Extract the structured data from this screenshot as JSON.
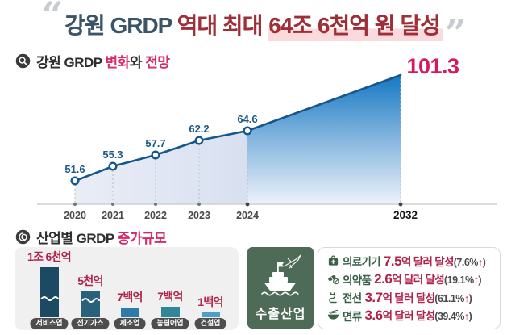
{
  "title": {
    "open_quote": "“",
    "close_quote": "”",
    "seg1": "강원 GRDP ",
    "seg2": "역대 최대 ",
    "seg3": "64조 6천억 원 달성"
  },
  "section1": {
    "t1": "강원 GRDP ",
    "t2": "변화",
    "t3": "와 ",
    "t4": "전망"
  },
  "section2": {
    "t1": "산업별 GRDP ",
    "t2": "증가규모"
  },
  "chart_data": [
    {
      "type": "area-line",
      "title": "강원 GRDP 변화와 전망",
      "categories": [
        "2020",
        "2021",
        "2022",
        "2023",
        "2024",
        "2032"
      ],
      "values": [
        51.6,
        55.3,
        57.7,
        62.2,
        64.6,
        101.3
      ],
      "value_labels": [
        "51.6",
        "55.3",
        "57.7",
        "62.2",
        "64.6",
        "101.3"
      ],
      "unit": "조 원",
      "forecast_start_category": "2024",
      "emphasized_index": 5,
      "gridlines": false,
      "xaxis_line": true,
      "line_color": "#15568c",
      "value_label_color": "#1c5884",
      "final_value_color": "#d6185f",
      "area_left_colors": [
        "#e9edf6",
        "#d8e0f0"
      ],
      "area_right_colors": [
        "#1478c3",
        "#7cb0dc",
        "#edf2fa"
      ]
    },
    {
      "type": "bar",
      "title": "산업별 GRDP 증가규모",
      "categories": [
        "서비스업",
        "전기가스",
        "제조업",
        "농림어업",
        "건설업"
      ],
      "value_labels": [
        "1조 6천억",
        "5천억",
        "7백억",
        "7백억",
        "1백억"
      ],
      "values": [
        16000,
        5000,
        700,
        700,
        100
      ],
      "unit": "억 원",
      "broken_axis": [
        true,
        true,
        false,
        false,
        false
      ],
      "bar_colors": [
        "#1d4a63",
        "#29607b",
        "#2d7ca8",
        "#2f8799",
        "#4f9dc9"
      ],
      "value_label_color": "#b0234a",
      "panel_color": "#f0f0f1",
      "category_pill_color": "#4d4d4d"
    }
  ],
  "export_section": {
    "panel_label": "수출산업",
    "panel_color": "#4e6b58",
    "items": [
      {
        "icon": "medical-kit-icon",
        "name": "의료기기",
        "value": "7.5",
        "value_suffix": "억 달러 달성",
        "change_open": "(7.6%",
        "arrow": "↑",
        "change_close": ")"
      },
      {
        "icon": "pill-icon",
        "name": "의약품",
        "value": "2.6",
        "value_suffix": "억 달러 달성",
        "change_open": "(19.1%",
        "arrow": "↑",
        "change_close": ")"
      },
      {
        "icon": "cable-icon",
        "name": "전선",
        "value": "3.7",
        "value_suffix": "억 달러 달성",
        "change_open": "(61.1%",
        "arrow": "↑",
        "change_close": ")"
      },
      {
        "icon": "noodle-bowl-icon",
        "name": "면류",
        "value": "3.6",
        "value_suffix": "억 달러 달성",
        "change_open": "(39.4%",
        "arrow": "↑",
        "change_close": ")"
      }
    ]
  },
  "colors": {
    "title_navy": "#3b5468",
    "title_red": "#9e2f36",
    "title_highlight": "#fadadc",
    "accent_pink": "#d92b63",
    "crimson": "#b0234a",
    "arrow_red": "#d6244c",
    "icon_green": "#3e6149"
  }
}
